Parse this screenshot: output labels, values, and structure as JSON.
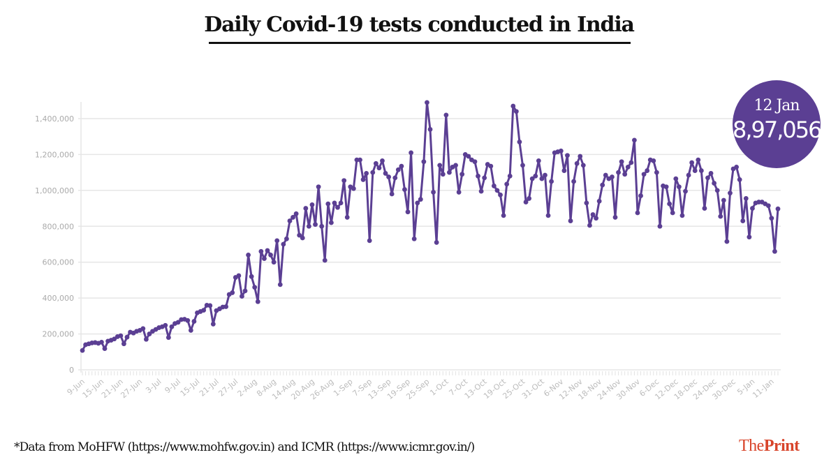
{
  "chart_data": {
    "type": "line",
    "title": "Daily Covid-19 tests conducted in India",
    "xlabel": "",
    "ylabel": "",
    "ylim": [
      0,
      1400000
    ],
    "grid": true,
    "yticks": [
      0,
      200000,
      400000,
      600000,
      800000,
      1000000,
      1200000,
      1400000
    ],
    "ytick_labels": [
      "0",
      "200,000",
      "400,000",
      "600,000",
      "800,000",
      "1,000,000",
      "1,200,000",
      "1,400,000"
    ],
    "xtick_labels": [
      "9-Jun",
      "15-Jun",
      "21-Jun",
      "27-Jun",
      "3-Jul",
      "9-Jul",
      "15-Jul",
      "21-Jul",
      "27-Jul",
      "2-Aug",
      "8-Aug",
      "14-Aug",
      "20-Aug",
      "26-Aug",
      "1-Sep",
      "7-Sep",
      "13-Sep",
      "19-Sep",
      "25-Sep",
      "1-Oct",
      "7-Oct",
      "13-Oct",
      "19-Oct",
      "25-Oct",
      "31-Oct",
      "6-Nov",
      "12-Nov",
      "18-Nov",
      "24-Nov",
      "30-Nov",
      "6-Dec",
      "12-Dec",
      "18-Dec",
      "24-Dec",
      "30-Dec",
      "5-Jan",
      "11-Jan"
    ],
    "x_start": "9-Jun",
    "x_end": "12-Jan",
    "series": [
      {
        "name": "Daily tests",
        "color": "#5b3f93",
        "values": [
          108000,
          140000,
          145000,
          150000,
          152000,
          148000,
          154000,
          118000,
          160000,
          165000,
          172000,
          185000,
          190000,
          145000,
          182000,
          210000,
          205000,
          215000,
          220000,
          230000,
          170000,
          200000,
          215000,
          225000,
          235000,
          240000,
          248000,
          180000,
          240000,
          258000,
          265000,
          280000,
          282000,
          275000,
          220000,
          270000,
          318000,
          325000,
          332000,
          360000,
          358000,
          255000,
          330000,
          340000,
          350000,
          352000,
          420000,
          430000,
          515000,
          525000,
          410000,
          440000,
          640000,
          520000,
          460000,
          380000,
          660000,
          620000,
          665000,
          640000,
          600000,
          720000,
          475000,
          700000,
          730000,
          830000,
          850000,
          870000,
          750000,
          735000,
          900000,
          800000,
          920000,
          810000,
          1020000,
          800000,
          610000,
          925000,
          820000,
          930000,
          905000,
          930000,
          1055000,
          850000,
          1020000,
          1010000,
          1170000,
          1170000,
          1060000,
          1095000,
          720000,
          1100000,
          1150000,
          1125000,
          1165000,
          1095000,
          1075000,
          980000,
          1070000,
          1115000,
          1135000,
          1005000,
          880000,
          1210000,
          730000,
          930000,
          950000,
          1160000,
          1490000,
          1340000,
          990000,
          710000,
          1140000,
          1090000,
          1420000,
          1100000,
          1130000,
          1140000,
          990000,
          1090000,
          1200000,
          1190000,
          1170000,
          1160000,
          1080000,
          995000,
          1070000,
          1145000,
          1135000,
          1025000,
          1000000,
          975000,
          860000,
          1035000,
          1080000,
          1470000,
          1440000,
          1270000,
          1140000,
          935000,
          955000,
          1065000,
          1080000,
          1165000,
          1065000,
          1085000,
          860000,
          1050000,
          1210000,
          1215000,
          1220000,
          1110000,
          1195000,
          830000,
          1050000,
          1150000,
          1190000,
          1140000,
          930000,
          805000,
          865000,
          845000,
          940000,
          1030000,
          1085000,
          1065000,
          1075000,
          850000,
          1100000,
          1160000,
          1090000,
          1130000,
          1155000,
          1280000,
          875000,
          970000,
          1090000,
          1110000,
          1170000,
          1165000,
          1100000,
          800000,
          1025000,
          1020000,
          925000,
          875000,
          1065000,
          1020000,
          860000,
          995000,
          1085000,
          1155000,
          1110000,
          1170000,
          1110000,
          900000,
          1070000,
          1095000,
          1040000,
          1000000,
          855000,
          945000,
          715000,
          985000,
          1120000,
          1130000,
          1060000,
          830000,
          955000,
          740000,
          900000,
          930000,
          935000,
          935000,
          925000,
          915000,
          845000,
          660000,
          897056
        ]
      }
    ],
    "annotation": {
      "date": "12 Jan",
      "value": "8,97,056"
    }
  },
  "header": {
    "title": "Daily Covid-19 tests conducted in India"
  },
  "badge": {
    "date": "12 Jan",
    "value": "8,97,056",
    "color": "#5b3f93"
  },
  "footer": {
    "source": "*Data from MoHFW (https://www.mohfw.gov.in) and ICMR (https://www.icmr.gov.in/)",
    "brand_light": "The",
    "brand_bold": "Print",
    "brand_color": "#d8442a"
  }
}
